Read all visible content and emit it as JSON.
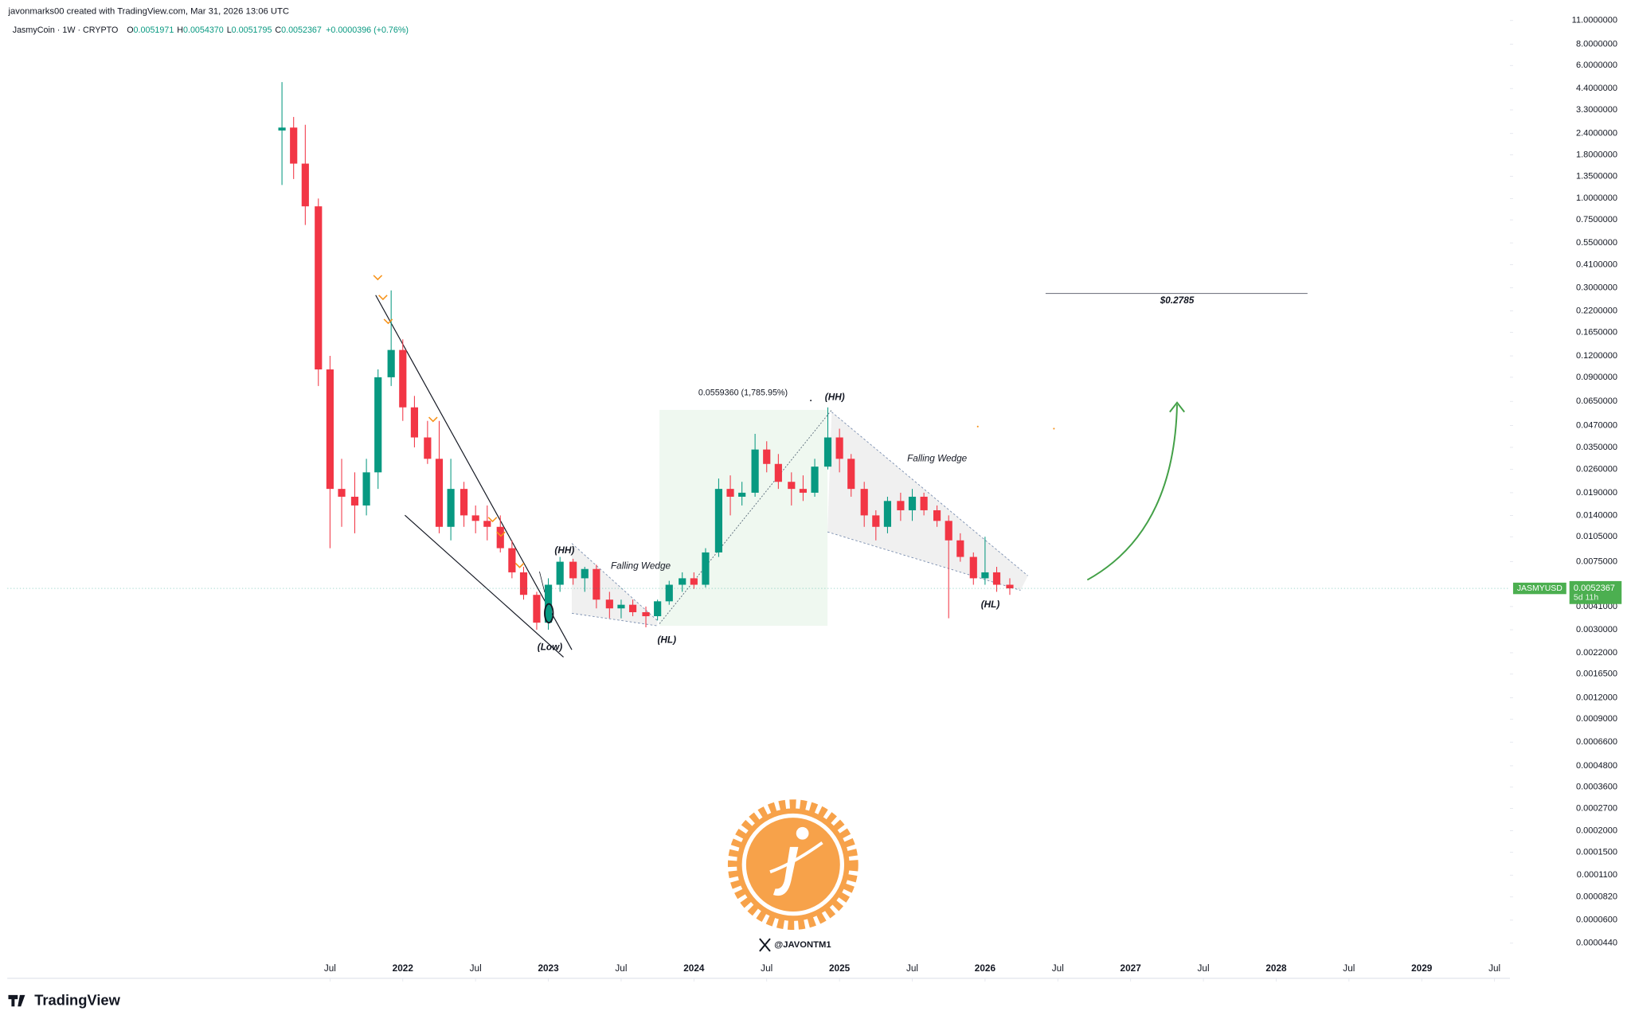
{
  "chart_data": {
    "type": "candlestick",
    "credit": "javonmarks00 created with TradingView.com, Mar 31, 2026 13:06 UTC",
    "title": "JasmyCoin · 1W · CRYPTO",
    "ohlc_header": [
      {
        "key": "O",
        "value": "0.0051971"
      },
      {
        "key": "H",
        "value": "0.0054370"
      },
      {
        "key": "L",
        "value": "0.0051795"
      },
      {
        "key": "C",
        "value": "0.0052367"
      }
    ],
    "change": "+0.0000396 (+0.76%)",
    "symbol": "JASMYUSD",
    "last_price": {
      "value": 0.0052367,
      "label": "0.0052367"
    },
    "countdown": "5d 11h",
    "log_scale": true,
    "up_color": "#089981",
    "down_color": "#f23645",
    "xlim": [
      2019.283,
      2029.606
    ],
    "ylim": [
      2.74e-05,
      14.5
    ],
    "xticks": [
      {
        "value": 2021.5,
        "label": "Jul"
      },
      2022,
      {
        "value": 2022.5,
        "label": "Jul"
      },
      2023,
      {
        "value": 2023.5,
        "label": "Jul"
      },
      2024,
      {
        "value": 2024.5,
        "label": "Jul"
      },
      2025,
      {
        "value": 2025.5,
        "label": "Jul"
      },
      2026,
      {
        "value": 2026.5,
        "label": "Jul"
      },
      2027,
      {
        "value": 2027.5,
        "label": "Jul"
      },
      2028,
      {
        "value": 2028.5,
        "label": "Jul"
      },
      2029,
      {
        "value": 2029.5,
        "label": "Jul"
      }
    ],
    "yticks": [
      {
        "value": 11,
        "label": "11.0000000"
      },
      {
        "value": 8,
        "label": "8.0000000"
      },
      {
        "value": 6,
        "label": "6.0000000"
      },
      {
        "value": 4.4,
        "label": "4.4000000"
      },
      {
        "value": 3.3,
        "label": "3.3000000"
      },
      {
        "value": 2.4,
        "label": "2.4000000"
      },
      {
        "value": 1.8,
        "label": "1.8000000"
      },
      {
        "value": 1.35,
        "label": "1.3500000"
      },
      {
        "value": 1,
        "label": "1.0000000"
      },
      {
        "value": 0.75,
        "label": "0.7500000"
      },
      {
        "value": 0.55,
        "label": "0.5500000"
      },
      {
        "value": 0.41,
        "label": "0.4100000"
      },
      {
        "value": 0.3,
        "label": "0.3000000"
      },
      {
        "value": 0.22,
        "label": "0.2200000"
      },
      {
        "value": 0.165,
        "label": "0.1650000"
      },
      {
        "value": 0.12,
        "label": "0.1200000"
      },
      {
        "value": 0.09,
        "label": "0.0900000"
      },
      {
        "value": 0.065,
        "label": "0.0650000"
      },
      {
        "value": 0.047,
        "label": "0.0470000"
      },
      {
        "value": 0.035,
        "label": "0.0350000"
      },
      {
        "value": 0.026,
        "label": "0.0260000"
      },
      {
        "value": 0.019,
        "label": "0.0190000"
      },
      {
        "value": 0.014,
        "label": "0.0140000"
      },
      {
        "value": 0.0105,
        "label": "0.0105000"
      },
      {
        "value": 0.0075,
        "label": "0.0075000"
      },
      {
        "value": 0.0041,
        "label": "0.0041000"
      },
      {
        "value": 0.003,
        "label": "0.0030000"
      },
      {
        "value": 0.0022,
        "label": "0.0022000"
      },
      {
        "value": 0.00165,
        "label": "0.0016500"
      },
      {
        "value": 0.0012,
        "label": "0.0012000"
      },
      {
        "value": 0.0009,
        "label": "0.0009000"
      },
      {
        "value": 0.00066,
        "label": "0.0006600"
      },
      {
        "value": 0.00048,
        "label": "0.0004800"
      },
      {
        "value": 0.00036,
        "label": "0.0003600"
      },
      {
        "value": 0.00027,
        "label": "0.0002700"
      },
      {
        "value": 0.0002,
        "label": "0.0002000"
      },
      {
        "value": 0.00015,
        "label": "0.0001500"
      },
      {
        "value": 0.00011,
        "label": "0.0001100"
      },
      {
        "value": 8.2e-05,
        "label": "0.0000820"
      },
      {
        "value": 6e-05,
        "label": "0.0000600"
      },
      {
        "value": 4.4e-05,
        "label": "0.0000440"
      }
    ],
    "x": [
      2021.17,
      2021.25,
      2021.33,
      2021.42,
      2021.5,
      2021.58,
      2021.67,
      2021.75,
      2021.83,
      2021.92,
      2022.0,
      2022.08,
      2022.17,
      2022.25,
      2022.33,
      2022.42,
      2022.5,
      2022.58,
      2022.67,
      2022.75,
      2022.83,
      2022.92,
      2023.0,
      2023.08,
      2023.17,
      2023.25,
      2023.33,
      2023.42,
      2023.5,
      2023.58,
      2023.67,
      2023.75,
      2023.83,
      2023.92,
      2024.0,
      2024.08,
      2024.17,
      2024.25,
      2024.33,
      2024.42,
      2024.5,
      2024.58,
      2024.67,
      2024.75,
      2024.83,
      2024.92,
      2025.0,
      2025.08,
      2025.17,
      2025.25,
      2025.33,
      2025.42,
      2025.5,
      2025.58,
      2025.67,
      2025.75,
      2025.83,
      2025.92,
      2026.0,
      2026.08,
      2026.17
    ],
    "open": [
      2.5,
      2.6,
      1.6,
      0.9,
      0.1,
      0.02,
      0.018,
      0.016,
      0.025,
      0.09,
      0.13,
      0.06,
      0.04,
      0.03,
      0.012,
      0.02,
      0.014,
      0.013,
      0.012,
      0.009,
      0.0065,
      0.0048,
      0.0033,
      0.0055,
      0.0075,
      0.006,
      0.0068,
      0.0045,
      0.004,
      0.0042,
      0.0038,
      0.0036,
      0.0044,
      0.0055,
      0.006,
      0.0055,
      0.0085,
      0.02,
      0.018,
      0.019,
      0.034,
      0.028,
      0.022,
      0.02,
      0.019,
      0.027,
      0.04,
      0.03,
      0.02,
      0.014,
      0.012,
      0.017,
      0.015,
      0.018,
      0.015,
      0.013,
      0.01,
      0.008,
      0.006,
      0.0065,
      0.0055
    ],
    "high": [
      4.8,
      3.0,
      2.7,
      1.0,
      0.12,
      0.03,
      0.025,
      0.03,
      0.1,
      0.29,
      0.15,
      0.07,
      0.05,
      0.05,
      0.03,
      0.022,
      0.016,
      0.016,
      0.014,
      0.01,
      0.007,
      0.005,
      0.006,
      0.008,
      0.0078,
      0.007,
      0.0072,
      0.005,
      0.0045,
      0.0045,
      0.0041,
      0.0045,
      0.0058,
      0.0065,
      0.0065,
      0.009,
      0.023,
      0.024,
      0.022,
      0.042,
      0.038,
      0.032,
      0.025,
      0.024,
      0.03,
      0.06,
      0.045,
      0.032,
      0.022,
      0.015,
      0.018,
      0.019,
      0.02,
      0.019,
      0.016,
      0.014,
      0.011,
      0.0085,
      0.0105,
      0.007,
      0.006
    ],
    "low": [
      1.2,
      1.3,
      0.7,
      0.08,
      0.009,
      0.012,
      0.011,
      0.014,
      0.02,
      0.08,
      0.05,
      0.035,
      0.028,
      0.011,
      0.01,
      0.012,
      0.011,
      0.01,
      0.0085,
      0.006,
      0.0045,
      0.003,
      0.003,
      0.005,
      0.0055,
      0.005,
      0.004,
      0.0035,
      0.0035,
      0.0036,
      0.0031,
      0.0034,
      0.0042,
      0.005,
      0.0052,
      0.0053,
      0.008,
      0.014,
      0.016,
      0.018,
      0.025,
      0.02,
      0.016,
      0.017,
      0.018,
      0.026,
      0.025,
      0.018,
      0.012,
      0.01,
      0.011,
      0.013,
      0.013,
      0.014,
      0.012,
      0.0035,
      0.0075,
      0.0055,
      0.0055,
      0.005,
      0.0048
    ],
    "close": [
      2.6,
      1.6,
      0.9,
      0.1,
      0.02,
      0.018,
      0.016,
      0.025,
      0.09,
      0.13,
      0.06,
      0.04,
      0.03,
      0.012,
      0.02,
      0.014,
      0.013,
      0.012,
      0.009,
      0.0065,
      0.0048,
      0.0033,
      0.0055,
      0.0075,
      0.006,
      0.0068,
      0.0045,
      0.004,
      0.0042,
      0.0038,
      0.0036,
      0.0044,
      0.0055,
      0.006,
      0.0055,
      0.0085,
      0.02,
      0.018,
      0.019,
      0.034,
      0.028,
      0.022,
      0.02,
      0.019,
      0.027,
      0.04,
      0.03,
      0.02,
      0.014,
      0.012,
      0.017,
      0.015,
      0.018,
      0.015,
      0.013,
      0.01,
      0.008,
      0.006,
      0.0065,
      0.0055,
      0.0052367
    ],
    "target": {
      "value": 0.2785,
      "label": "$0.2785"
    },
    "annotations": [
      "(HH)",
      "(Low)",
      "Falling Wedge",
      "(HL)",
      "0.0559360 (1,785.95%)",
      "(HH)",
      "Falling Wedge",
      "(HL)"
    ],
    "watermark": "@JAVONTM1",
    "brand": "TradingView"
  }
}
